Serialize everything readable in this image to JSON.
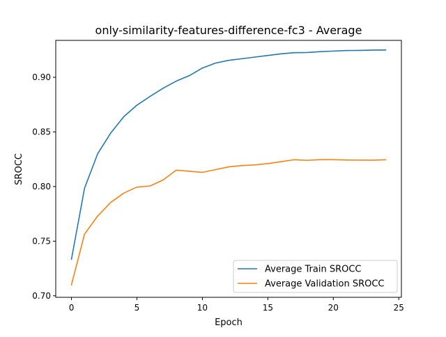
{
  "chart_data": {
    "type": "line",
    "title": "only-similarity-features-difference-fc3 - Average",
    "xlabel": "Epoch",
    "ylabel": "SROCC",
    "xlim": [
      -1.2,
      25.2
    ],
    "ylim": [
      0.6986,
      0.9338
    ],
    "xticks": [
      0,
      5,
      10,
      15,
      20,
      25
    ],
    "yticks": [
      0.7,
      0.75,
      0.8,
      0.85,
      0.9
    ],
    "ytick_labels": [
      "0.70",
      "0.75",
      "0.80",
      "0.85",
      "0.90"
    ],
    "grid": false,
    "legend_position": "lower-right",
    "x": [
      0,
      1,
      2,
      3,
      4,
      5,
      6,
      7,
      8,
      9,
      10,
      11,
      12,
      13,
      14,
      15,
      16,
      17,
      18,
      19,
      20,
      21,
      22,
      23,
      24
    ],
    "series": [
      {
        "name": "Average Train SROCC",
        "color": "#1f77b4",
        "values": [
          0.7335,
          0.7985,
          0.83,
          0.849,
          0.864,
          0.8745,
          0.8825,
          0.89,
          0.8965,
          0.9015,
          0.9085,
          0.913,
          0.9155,
          0.917,
          0.9185,
          0.92,
          0.9215,
          0.9225,
          0.9227,
          0.9235,
          0.924,
          0.9245,
          0.9246,
          0.9249,
          0.925
        ]
      },
      {
        "name": "Average Validation SROCC",
        "color": "#ff7f0e",
        "values": [
          0.71,
          0.7565,
          0.773,
          0.7855,
          0.794,
          0.7995,
          0.8005,
          0.806,
          0.815,
          0.814,
          0.813,
          0.8155,
          0.818,
          0.8192,
          0.8198,
          0.821,
          0.8228,
          0.8245,
          0.824,
          0.8246,
          0.8246,
          0.8243,
          0.8242,
          0.8241,
          0.8245
        ]
      }
    ]
  }
}
